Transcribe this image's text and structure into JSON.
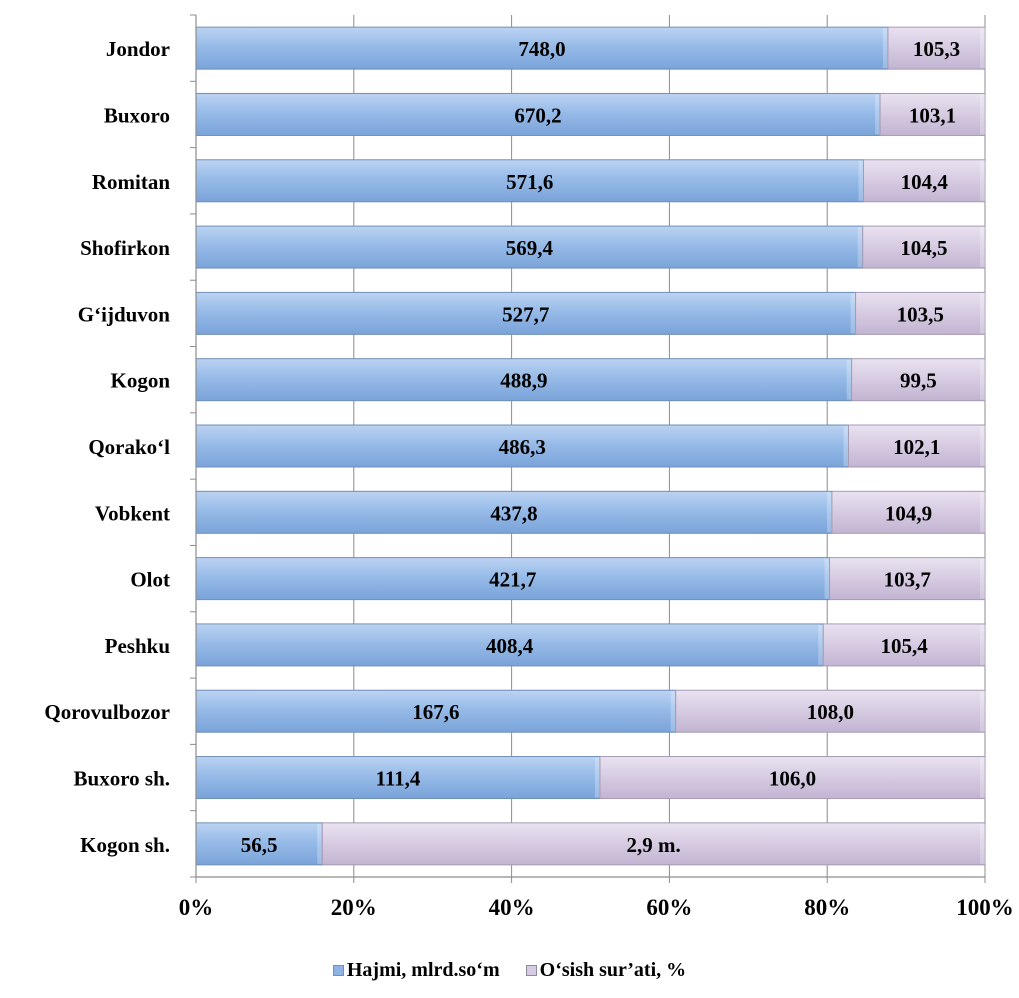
{
  "chart_data": {
    "type": "bar",
    "orientation": "horizontal",
    "stacked": "percent",
    "categories": [
      "Jondor",
      "Buxoro",
      "Romitan",
      "Shofirkon",
      "G‘ijduvon",
      "Kogon",
      "Qorako‘l",
      "Vobkent",
      "Olot",
      "Peshku",
      "Qorovulbozor",
      "Buxoro sh.",
      "Kogon sh."
    ],
    "series": [
      {
        "name": "Hajmi, mlrd.so‘m",
        "color": "#8fb3e3",
        "shares_percent": [
          87.7,
          86.7,
          84.6,
          84.5,
          83.6,
          83.1,
          82.7,
          80.6,
          80.3,
          79.5,
          60.8,
          51.2,
          16.0
        ],
        "labels": [
          "748,0",
          "670,2",
          "571,6",
          "569,4",
          "527,7",
          "488,9",
          "486,3",
          "437,8",
          "421,7",
          "408,4",
          "167,6",
          "111,4",
          "56,5"
        ]
      },
      {
        "name": "O‘sish sur’ati, %",
        "color": "#d6cbe2",
        "shares_percent": [
          12.3,
          13.3,
          15.4,
          15.5,
          16.4,
          16.9,
          17.3,
          19.4,
          19.7,
          20.5,
          39.2,
          48.8,
          84.0
        ],
        "labels": [
          "105,3",
          "103,1",
          "104,4",
          "104,5",
          "103,5",
          "99,5",
          "102,1",
          "104,9",
          "103,7",
          "105,4",
          "108,0",
          "106,0",
          "2,9 m."
        ]
      }
    ],
    "x_ticks": [
      "0%",
      "20%",
      "40%",
      "60%",
      "80%",
      "100%"
    ],
    "xlim": [
      0,
      100
    ],
    "grid": "vertical",
    "legend": "bottom"
  }
}
